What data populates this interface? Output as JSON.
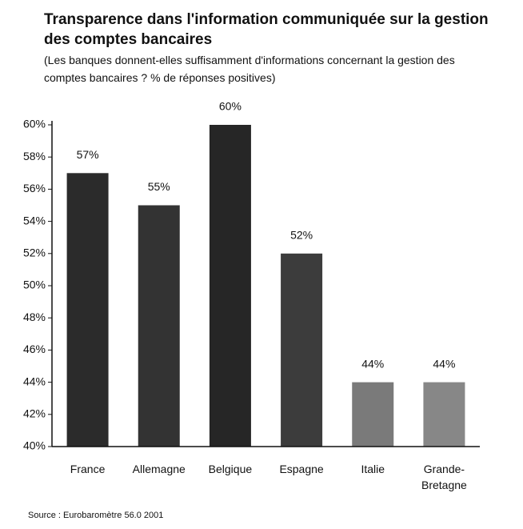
{
  "chart_data": {
    "type": "bar",
    "title": "Transparence dans l'information communiquée sur la gestion des comptes bancaires",
    "subtitle": "(Les banques donnent-elles suffisamment d'informations concernant la gestion des comptes bancaires ? % de réponses positives)",
    "source": "Source : Eurobaromètre 56.0 2001",
    "categories": [
      "France",
      "Allemagne",
      "Belgique",
      "Espagne",
      "Italie",
      "Grande-Bretagne"
    ],
    "values": [
      57,
      55,
      60,
      52,
      44,
      44
    ],
    "value_labels": [
      "57%",
      "55%",
      "60%",
      "52%",
      "44%",
      "44%"
    ],
    "colors": [
      "#2b2b2b",
      "#333333",
      "#262626",
      "#3c3c3c",
      "#7a7a7a",
      "#878787"
    ],
    "ylim": [
      40,
      60
    ],
    "yticks": [
      {
        "value": 40,
        "label": "40%"
      },
      {
        "value": 42,
        "label": "42%"
      },
      {
        "value": 44,
        "label": "44%"
      },
      {
        "value": 46,
        "label": "46%"
      },
      {
        "value": 48,
        "label": "48%"
      },
      {
        "value": 50,
        "label": "50%"
      },
      {
        "value": 52,
        "label": "52%"
      },
      {
        "value": 54,
        "label": "54%"
      },
      {
        "value": 56,
        "label": "56%"
      },
      {
        "value": 58,
        "label": "58%"
      },
      {
        "value": 60,
        "label": "60%"
      }
    ],
    "grid": false
  }
}
